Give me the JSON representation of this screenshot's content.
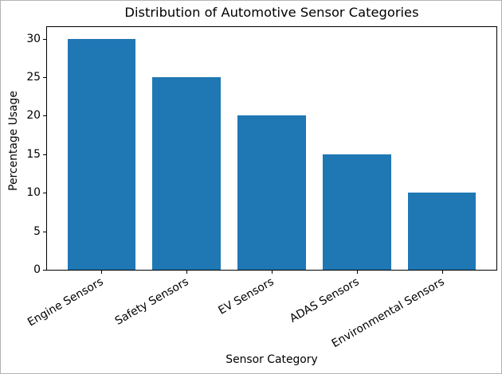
{
  "chart_data": {
    "type": "bar",
    "title": "Distribution of Automotive Sensor Categories",
    "xlabel": "Sensor Category",
    "ylabel": "Percentage Usage",
    "categories": [
      "Engine Sensors",
      "Safety Sensors",
      "EV Sensors",
      "ADAS Sensors",
      "Environmental Sensors"
    ],
    "values": [
      30,
      25,
      20,
      15,
      10
    ],
    "yticks": [
      0,
      5,
      10,
      15,
      20,
      25,
      30
    ],
    "ylim": [
      0,
      31.5
    ],
    "bar_color": "#1f77b4",
    "bar_width_frac": 0.8,
    "x_tick_rotation_deg": 30,
    "grid": false,
    "legend": false,
    "background_color": "#ffffff",
    "spine_color": "#000000",
    "text_color": "#000000"
  }
}
